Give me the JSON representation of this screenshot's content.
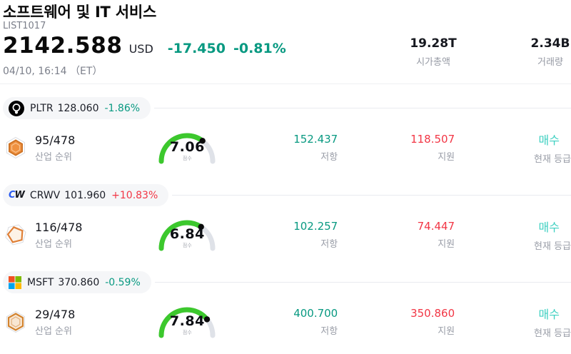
{
  "colors": {
    "up": "#f23645",
    "down": "#089981",
    "buy": "#3ed0c1",
    "gauge_green": "#3cc82d"
  },
  "header": {
    "title": "소프트웨어 및 IT 서비스",
    "list_id": "LIST1017",
    "price": "2142.588",
    "currency": "USD",
    "change_abs": "-17.450",
    "change_pct": "-0.81%",
    "change_dir": "down",
    "datetime": "04/10, 16:14 （ET）",
    "stats": [
      {
        "value": "19.28T",
        "label": "시가총액"
      },
      {
        "value": "2.34B",
        "label": "거래량"
      }
    ]
  },
  "labels": {
    "rank": "산업 순위",
    "score": "점수",
    "resistance": "저항",
    "support": "지원",
    "rating": "현재 등급"
  },
  "rows": [
    {
      "ticker": "PLTR",
      "logo": "palantir-logo",
      "price": "128.060",
      "change": "-1.86%",
      "direction": "down",
      "rank": "95/478",
      "score": "7.06",
      "score_value": 7.06,
      "resistance": "152.437",
      "support": "118.507",
      "rating": "매수"
    },
    {
      "ticker": "CRWV",
      "logo": "coreweave-logo",
      "logo_letters": {
        "c": "C",
        "w": "W"
      },
      "price": "101.960",
      "change": "+10.83%",
      "direction": "up",
      "rank": "116/478",
      "score": "6.84",
      "score_value": 6.84,
      "resistance": "102.257",
      "support": "74.447",
      "rating": "매수"
    },
    {
      "ticker": "MSFT",
      "logo": "microsoft-logo",
      "price": "370.860",
      "change": "-0.59%",
      "direction": "down",
      "rank": "29/478",
      "score": "7.84",
      "score_value": 7.84,
      "resistance": "400.700",
      "support": "350.860",
      "rating": "매수"
    }
  ]
}
